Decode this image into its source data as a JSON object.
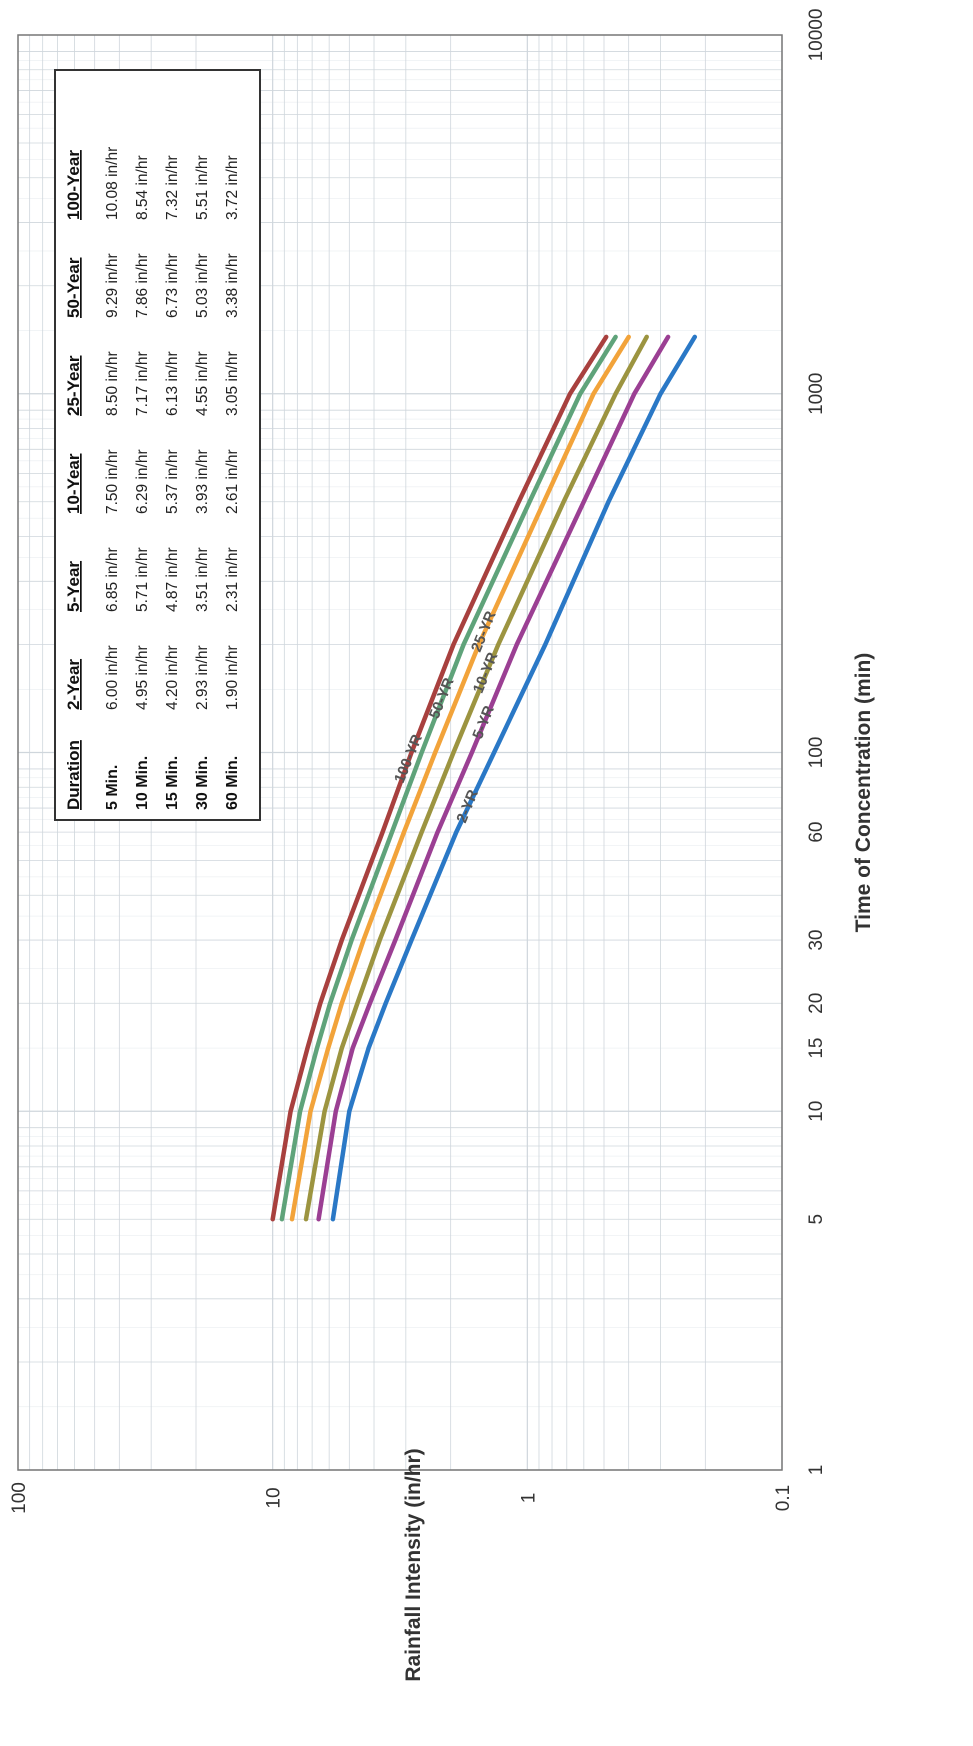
{
  "chart_data": {
    "type": "line",
    "orientation": "rotated-90-ccw",
    "xlabel": "Time of Concentration (min)",
    "ylabel": "Rainfall Intensity (in/hr)",
    "x_scale": "log",
    "y_scale": "log",
    "xlim": [
      1,
      10000
    ],
    "ylim": [
      0.1,
      100
    ],
    "x_ticks": [
      {
        "value": 1,
        "label": "1"
      },
      {
        "value": 5,
        "label": "5"
      },
      {
        "value": 10,
        "label": "10"
      },
      {
        "value": 15,
        "label": "15"
      },
      {
        "value": 20,
        "label": "20"
      },
      {
        "value": 30,
        "label": "30"
      },
      {
        "value": 60,
        "label": "60"
      },
      {
        "value": 100,
        "label": "100"
      },
      {
        "value": 1000,
        "label": "1000"
      },
      {
        "value": 10000,
        "label": "10000"
      }
    ],
    "y_ticks": [
      {
        "value": 0.1,
        "label": "0.1"
      },
      {
        "value": 1,
        "label": "1"
      },
      {
        "value": 10,
        "label": "10"
      },
      {
        "value": 100,
        "label": "100"
      }
    ],
    "grid": true,
    "series": [
      {
        "label": "2-YR",
        "color": "#2a78c6",
        "x": [
          5,
          10,
          15,
          20,
          30,
          60,
          100,
          200,
          500,
          1000,
          1440
        ],
        "y": [
          5.8,
          5.0,
          4.2,
          3.6,
          2.85,
          1.9,
          1.35,
          0.85,
          0.48,
          0.3,
          0.22
        ]
      },
      {
        "label": "5-YR",
        "color": "#9b3f93",
        "x": [
          5,
          10,
          15,
          20,
          30,
          60,
          100,
          200,
          500,
          1000,
          1440
        ],
        "y": [
          6.6,
          5.65,
          4.85,
          4.15,
          3.3,
          2.25,
          1.65,
          1.1,
          0.6,
          0.38,
          0.28
        ]
      },
      {
        "label": "10-YR",
        "color": "#9c9440",
        "x": [
          5,
          10,
          15,
          20,
          30,
          60,
          100,
          200,
          500,
          1000,
          1440
        ],
        "y": [
          7.4,
          6.25,
          5.35,
          4.65,
          3.8,
          2.6,
          1.95,
          1.3,
          0.72,
          0.45,
          0.34
        ]
      },
      {
        "label": "25-YR",
        "color": "#f2a33a",
        "x": [
          5,
          10,
          15,
          20,
          30,
          60,
          100,
          200,
          500,
          1000,
          1440
        ],
        "y": [
          8.4,
          7.1,
          6.05,
          5.35,
          4.4,
          3.05,
          2.3,
          1.55,
          0.86,
          0.55,
          0.4
        ]
      },
      {
        "label": "50-YR",
        "color": "#5fa37a",
        "x": [
          5,
          10,
          15,
          20,
          30,
          60,
          100,
          200,
          500,
          1000,
          1440
        ],
        "y": [
          9.2,
          7.8,
          6.7,
          5.95,
          4.9,
          3.4,
          2.6,
          1.78,
          0.98,
          0.62,
          0.45
        ]
      },
      {
        "label": "100-YR",
        "color": "#a8403e",
        "x": [
          5,
          10,
          15,
          20,
          30,
          60,
          100,
          200,
          500,
          1000,
          1440
        ],
        "y": [
          10.0,
          8.5,
          7.3,
          6.5,
          5.35,
          3.7,
          2.85,
          1.95,
          1.08,
          0.68,
          0.49
        ]
      }
    ],
    "table": {
      "headers": [
        "Duration",
        "2-Year",
        "5-Year",
        "10-Year",
        "25-Year",
        "50-Year",
        "100-Year"
      ],
      "rows": [
        {
          "duration": "5 Min.",
          "values": [
            "6.00 in/hr",
            "6.85 in/hr",
            "7.50 in/hr",
            "8.50 in/hr",
            "9.29 in/hr",
            "10.08 in/hr"
          ]
        },
        {
          "duration": "10 Min.",
          "values": [
            "4.95 in/hr",
            "5.71 in/hr",
            "6.29 in/hr",
            "7.17 in/hr",
            "7.86 in/hr",
            "8.54 in/hr"
          ]
        },
        {
          "duration": "15 Min.",
          "values": [
            "4.20 in/hr",
            "4.87 in/hr",
            "5.37 in/hr",
            "6.13 in/hr",
            "6.73 in/hr",
            "7.32 in/hr"
          ]
        },
        {
          "duration": "30 Min.",
          "values": [
            "2.93 in/hr",
            "3.51 in/hr",
            "3.93 in/hr",
            "4.55 in/hr",
            "5.03 in/hr",
            "5.51 in/hr"
          ]
        },
        {
          "duration": "60 Min.",
          "values": [
            "1.90 in/hr",
            "2.31 in/hr",
            "2.61 in/hr",
            "3.05 in/hr",
            "3.38 in/hr",
            "3.72 in/hr"
          ]
        }
      ]
    },
    "colors": {
      "grid": "#cfd6dc",
      "axis": "#777777",
      "table_border": "#333333"
    }
  }
}
